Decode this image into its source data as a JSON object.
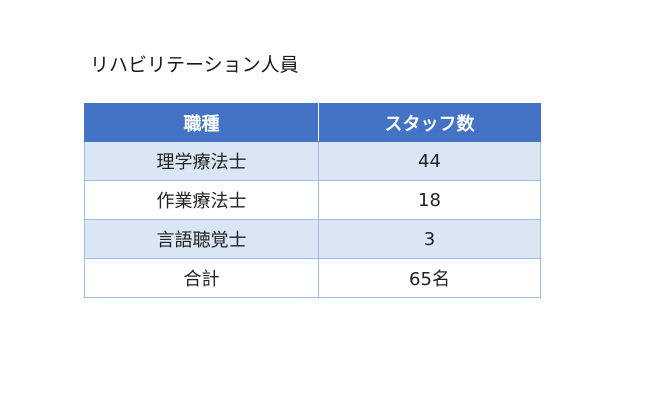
{
  "title": "リハビリテーション人員",
  "table": {
    "headers": [
      "職種",
      "スタッフ数"
    ],
    "rows": [
      [
        "理学療法士",
        "44"
      ],
      [
        "作業療法士",
        "18"
      ],
      [
        "言語聴覚士",
        "3"
      ],
      [
        "合計",
        "65名"
      ]
    ]
  },
  "colors": {
    "header_bg": "#4472c4",
    "band_bg": "#dae6f4",
    "border": "#9dbde6"
  }
}
